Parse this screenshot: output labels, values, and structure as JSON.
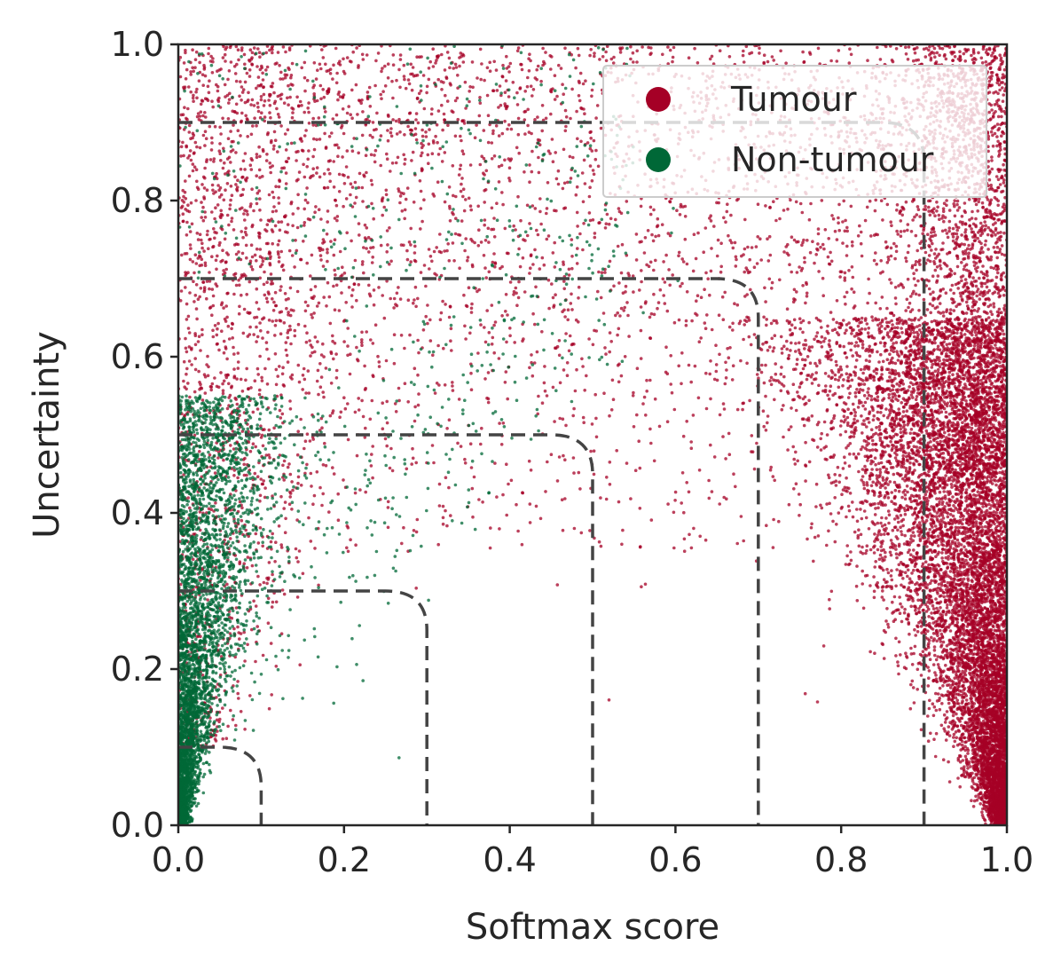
{
  "chart_data": {
    "type": "scatter",
    "title": "",
    "xlabel": "Softmax score",
    "ylabel": "Uncertainty",
    "xlim": [
      0.0,
      1.0
    ],
    "ylim": [
      0.0,
      1.0
    ],
    "xticks": [
      "0.0",
      "0.2",
      "0.4",
      "0.6",
      "0.8",
      "1.0"
    ],
    "yticks": [
      "0.0",
      "0.2",
      "0.4",
      "0.6",
      "0.8",
      "1.0"
    ],
    "xtick_values": [
      0.0,
      0.2,
      0.4,
      0.6,
      0.8,
      1.0
    ],
    "ytick_values": [
      0.0,
      0.2,
      0.4,
      0.6,
      0.8,
      1.0
    ],
    "grid": false,
    "legend_position": "top-right",
    "series": [
      {
        "name": "Tumour",
        "color": "#a50026",
        "description": "dense near softmax 1.0 with low uncertainty; scattered at high uncertainty across all scores",
        "sample_points": [
          [
            0.98,
            0.05
          ],
          [
            0.97,
            0.15
          ],
          [
            0.95,
            0.3
          ],
          [
            0.92,
            0.5
          ],
          [
            0.9,
            0.7
          ],
          [
            0.5,
            0.9
          ],
          [
            0.2,
            0.8
          ],
          [
            0.05,
            0.6
          ],
          [
            0.3,
            0.55
          ],
          [
            0.75,
            0.55
          ]
        ]
      },
      {
        "name": "Non-tumour",
        "color": "#006837",
        "description": "dense near softmax 0.0 with low uncertainty; sparse at moderate uncertainty",
        "sample_points": [
          [
            0.01,
            0.02
          ],
          [
            0.02,
            0.1
          ],
          [
            0.03,
            0.2
          ],
          [
            0.05,
            0.3
          ],
          [
            0.08,
            0.4
          ],
          [
            0.15,
            0.5
          ],
          [
            0.3,
            0.6
          ],
          [
            0.1,
            0.85
          ],
          [
            0.4,
            0.45
          ]
        ]
      }
    ],
    "threshold_curves": [
      {
        "threshold": 0.1,
        "style": "dashed",
        "color": "#444444"
      },
      {
        "threshold": 0.3,
        "style": "dashed",
        "color": "#444444"
      },
      {
        "threshold": 0.5,
        "style": "dashed",
        "color": "#444444"
      },
      {
        "threshold": 0.7,
        "style": "dashed",
        "color": "#444444"
      },
      {
        "threshold": 0.9,
        "style": "dashed",
        "color": "#444444"
      }
    ],
    "curve_corner_radius": 0.05
  }
}
